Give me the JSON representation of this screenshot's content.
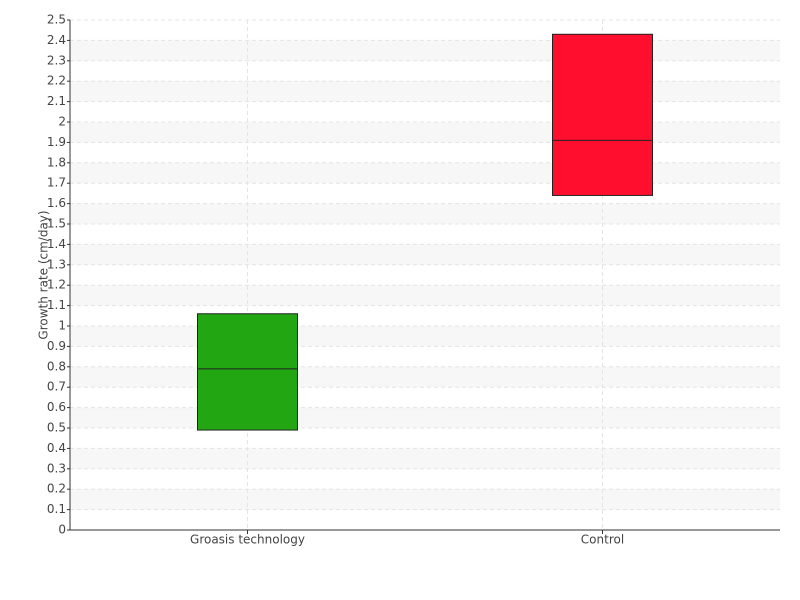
{
  "chart_data": {
    "type": "box",
    "y_label": "Growth rate (cm/day)",
    "categories": [
      "Groasis technology",
      "Control"
    ],
    "q1": [
      0.49,
      1.64
    ],
    "median": [
      0.79,
      1.91
    ],
    "q3": [
      1.06,
      2.43
    ],
    "colors": [
      "#22a612",
      "#ff0f2d"
    ],
    "ylim": [
      0,
      2.5
    ],
    "yticks": [
      0,
      0.1,
      0.2,
      0.3,
      0.4,
      0.5,
      0.6,
      0.7,
      0.8,
      0.9,
      1,
      1.1,
      1.2,
      1.3,
      1.4,
      1.5,
      1.6,
      1.7,
      1.8,
      1.9,
      2,
      2.1,
      2.2,
      2.3,
      2.4,
      2.5
    ],
    "grid": true
  }
}
